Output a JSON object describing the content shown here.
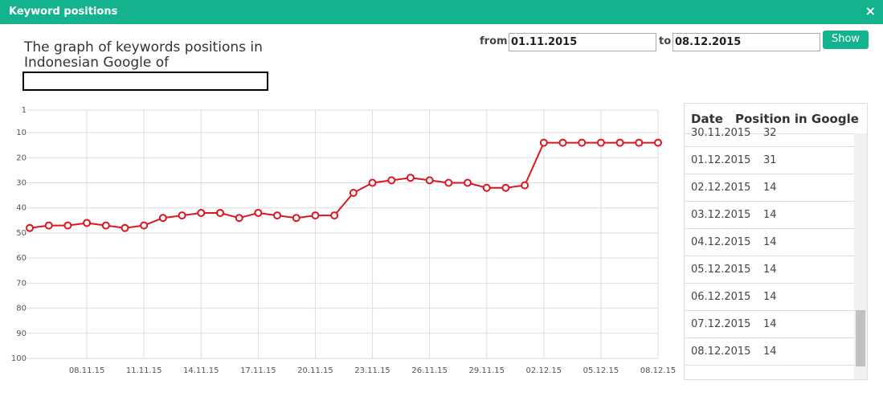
{
  "dialog": {
    "title": "Keyword positions",
    "close": "×"
  },
  "heading": "The graph of keywords positions in Indonesian Google of",
  "form": {
    "from_label": "from",
    "from_value": "01.11.2015",
    "to_label": "to",
    "to_value": "08.12.2015",
    "button": "Show"
  },
  "chart_data": {
    "type": "line",
    "color": "#e0141e",
    "grid": true,
    "x": [
      "05.11.15",
      "06.11.15",
      "07.11.15",
      "08.11.15",
      "09.11.15",
      "10.11.15",
      "11.11.15",
      "12.11.15",
      "13.11.15",
      "14.11.15",
      "15.11.15",
      "16.11.15",
      "17.11.15",
      "18.11.15",
      "19.11.15",
      "20.11.15",
      "21.11.15",
      "22.11.15",
      "23.11.15",
      "24.11.15",
      "25.11.15",
      "26.11.15",
      "27.11.15",
      "28.11.15",
      "29.11.15",
      "30.11.15",
      "01.12.15",
      "02.12.15",
      "03.12.15",
      "04.12.15",
      "05.12.15",
      "06.12.15",
      "07.12.15",
      "08.12.15"
    ],
    "values": [
      48,
      47,
      47,
      46,
      47,
      48,
      47,
      44,
      43,
      42,
      42,
      44,
      42,
      43,
      44,
      43,
      43,
      34,
      30,
      29,
      28,
      29,
      30,
      30,
      32,
      32,
      31,
      14,
      14,
      14,
      14,
      14,
      14,
      14
    ],
    "xlim": [
      "05.11.15",
      "08.12.15"
    ],
    "xticks": [
      "08.11.15",
      "11.11.15",
      "14.11.15",
      "17.11.15",
      "20.11.15",
      "23.11.15",
      "26.11.15",
      "29.11.15",
      "02.12.15",
      "05.12.15",
      "08.12.15"
    ],
    "ylim": [
      100,
      1
    ],
    "yticks": [
      1,
      10,
      20,
      30,
      40,
      50,
      60,
      70,
      80,
      90,
      100
    ]
  },
  "table": {
    "header": [
      "Date",
      "Position in Google"
    ],
    "rows": [
      [
        "30.11.2015",
        32
      ],
      [
        "01.12.2015",
        31
      ],
      [
        "02.12.2015",
        14
      ],
      [
        "03.12.2015",
        14
      ],
      [
        "04.12.2015",
        14
      ],
      [
        "05.12.2015",
        14
      ],
      [
        "06.12.2015",
        14
      ],
      [
        "07.12.2015",
        14
      ],
      [
        "08.12.2015",
        14
      ]
    ]
  }
}
